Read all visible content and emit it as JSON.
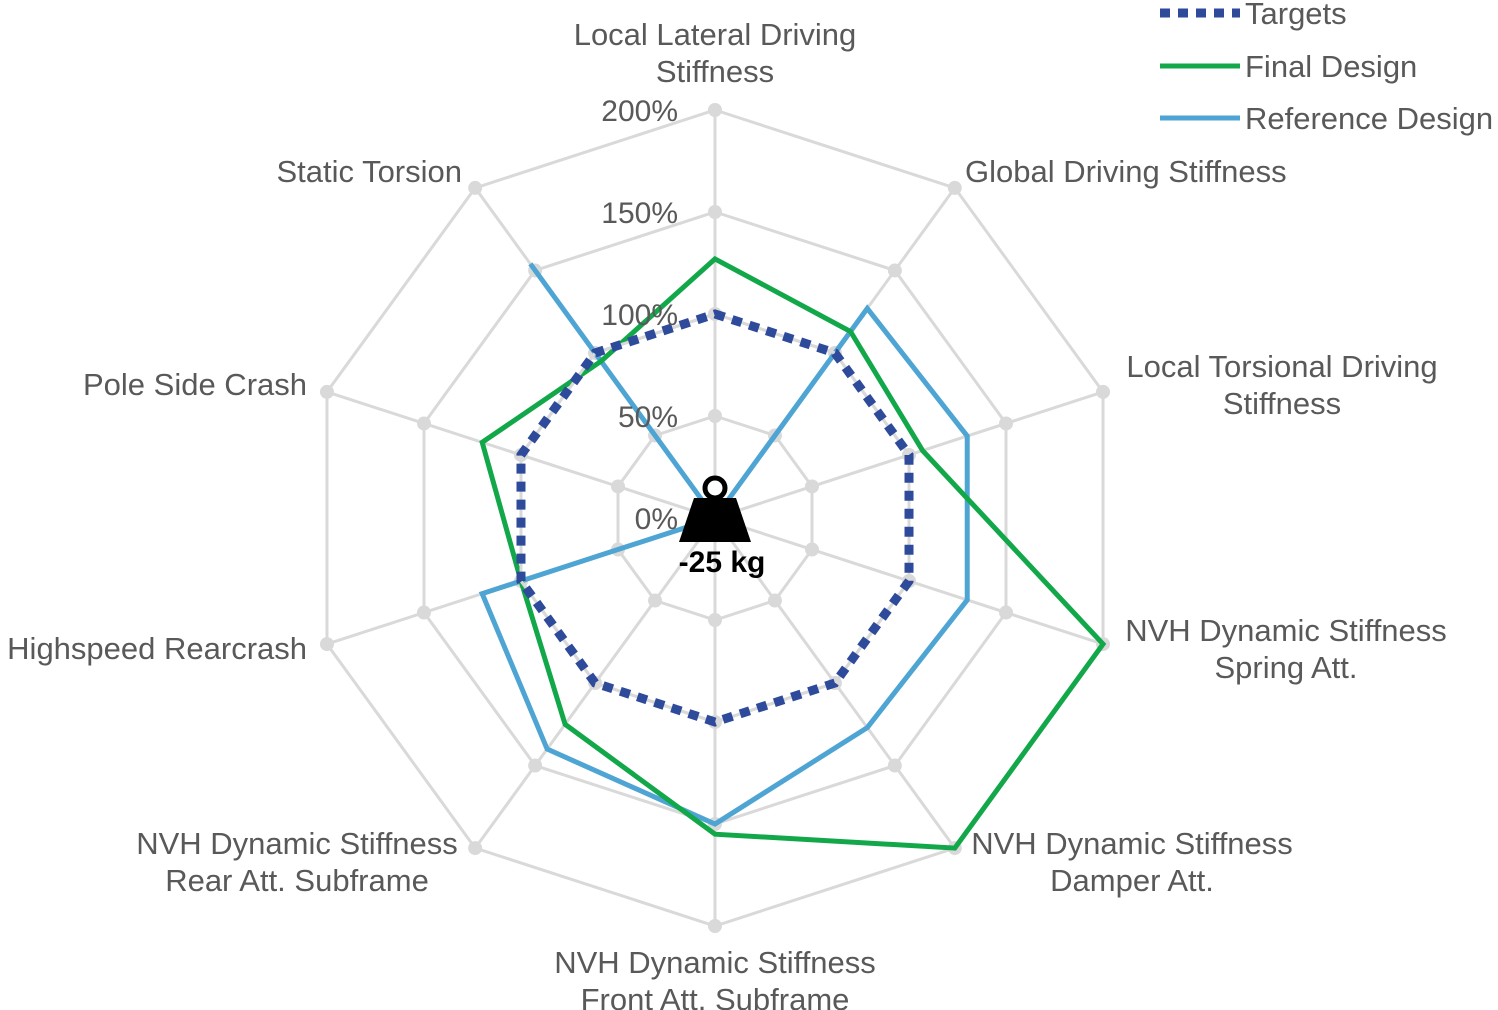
{
  "chart_data": {
    "type": "radar",
    "categories": [
      [
        "Local Lateral Driving",
        "Stiffness"
      ],
      [
        "Global Driving Stiffness"
      ],
      [
        "Local Torsional Driving",
        "Stiffness"
      ],
      [
        "NVH Dynamic Stiffness",
        "Spring Att."
      ],
      [
        "NVH Dynamic Stiffness",
        "Damper Att."
      ],
      [
        "NVH Dynamic Stiffness",
        "Front Att. Subframe"
      ],
      [
        "NVH Dynamic Stiffness",
        "Rear Att. Subframe"
      ],
      [
        "Highspeed Rearcrash"
      ],
      [
        "Pole Side Crash"
      ],
      [
        "Static Torsion"
      ]
    ],
    "radial_ticks": [
      "0%",
      "50%",
      "100%",
      "150%",
      "200%"
    ],
    "rmax": 200,
    "series": [
      {
        "name": "Targets",
        "values": [
          100,
          100,
          100,
          100,
          100,
          100,
          100,
          100,
          100,
          100
        ],
        "color": "#2E4A9B",
        "style": "dotted"
      },
      {
        "name": "Final Design",
        "values": [
          127,
          113,
          107,
          200,
          200,
          155,
          125,
          100,
          120,
          95
        ],
        "color": "#12A84A",
        "style": "solid"
      },
      {
        "name": "Reference Design",
        "values": [
          0,
          127,
          130,
          130,
          127,
          150,
          140,
          120,
          0,
          154
        ],
        "color": "#4EA5D4",
        "style": "solid"
      }
    ],
    "grid": true,
    "legend_position": "top-right",
    "annotation": {
      "icon": "weight-icon",
      "label": "-25 kg"
    }
  }
}
